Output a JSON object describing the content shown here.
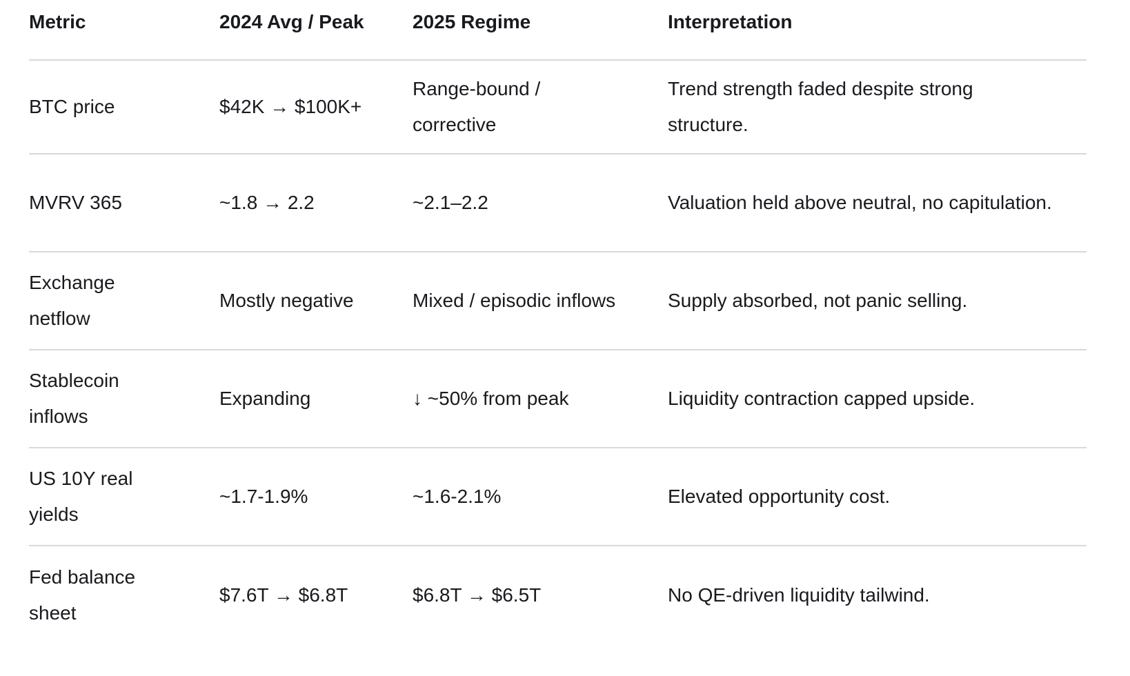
{
  "chart_data": {
    "type": "table",
    "columns": [
      "Metric",
      "2024 Avg / Peak",
      "2025 Regime",
      "Interpretation"
    ],
    "rows": [
      [
        "BTC price",
        "$42K → $100K+",
        "Range-bound / corrective",
        "Trend strength faded despite strong structure."
      ],
      [
        "MVRV 365",
        "~1.8 → 2.2",
        "~2.1–2.2",
        "Valuation held above neutral, no capitulation."
      ],
      [
        "Exchange netflow",
        "Mostly negative",
        "Mixed / episodic inflows",
        "Supply absorbed, not panic selling."
      ],
      [
        "Stablecoin inflows",
        "Expanding",
        "↓ ~50% from peak",
        "Liquidity contraction capped upside."
      ],
      [
        "US 10Y real yields",
        "~1.7-1.9%",
        "~1.6-2.1%",
        "Elevated opportunity cost."
      ],
      [
        "Fed balance sheet",
        "$7.6T → $6.8T",
        "$6.8T → $6.5T",
        "No QE-driven liquidity tailwind."
      ]
    ],
    "layout": {
      "grid": "horizontal-row-dividers-only",
      "header_style": "bold",
      "legend_position": "none"
    }
  },
  "colors": {
    "text": "#181a1e",
    "divider": "#d8d8d8",
    "background": "#ffffff"
  }
}
